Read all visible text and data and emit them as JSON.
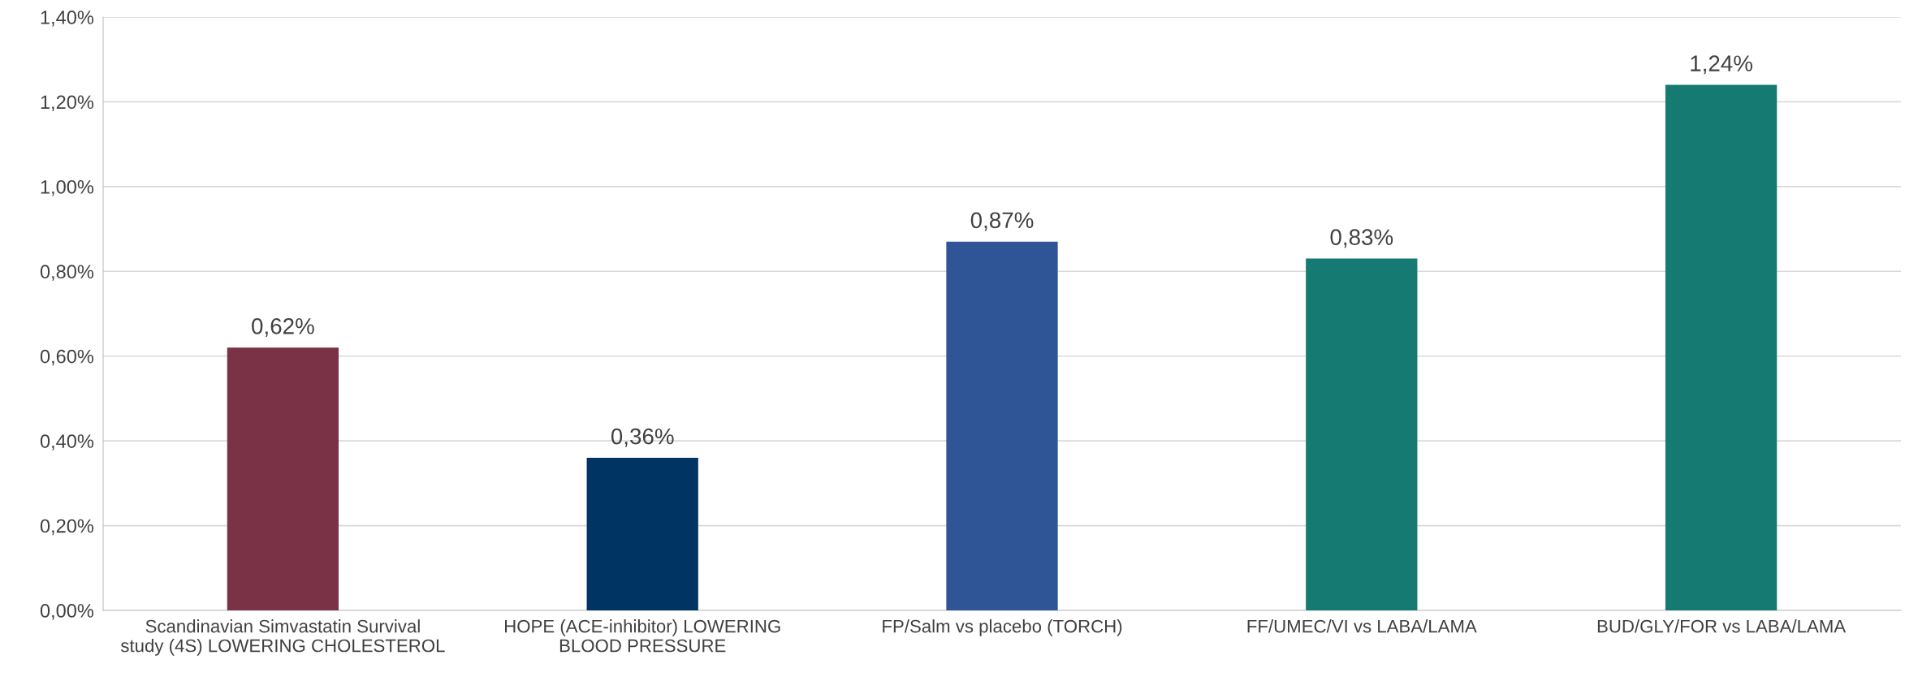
{
  "chart_data": {
    "type": "bar",
    "categories": [
      "Scandinavian Simvastatin Survival\nstudy (4S) LOWERING CHOLESTEROL",
      "HOPE (ACE-inhibitor) LOWERING\nBLOOD PRESSURE",
      "FP/Salm vs placebo (TORCH)",
      "FF/UMEC/VI vs LABA/LAMA",
      "BUD/GLY/FOR vs LABA/LAMA"
    ],
    "values": [
      0.62,
      0.36,
      0.87,
      0.83,
      1.24
    ],
    "colors": [
      "#7a3246",
      "#003462",
      "#2f5597",
      "#157a72",
      "#157a72"
    ],
    "value_labels": [
      "0,62%",
      "0,36%",
      "0,87%",
      "0,83%",
      "1,24%"
    ],
    "ylim": [
      0,
      1.4
    ],
    "yticks": [
      {
        "value": 0,
        "label": "0,00%"
      },
      {
        "value": 0.2,
        "label": "0,20%"
      },
      {
        "value": 0.4,
        "label": "0,40%"
      },
      {
        "value": 0.6,
        "label": "0,60%"
      },
      {
        "value": 0.8,
        "label": "0,80%"
      },
      {
        "value": 1.0,
        "label": "1,00%"
      },
      {
        "value": 1.2,
        "label": "1,20%"
      },
      {
        "value": 1.4,
        "label": "1,40%"
      }
    ],
    "grid": "y",
    "legend": false
  }
}
